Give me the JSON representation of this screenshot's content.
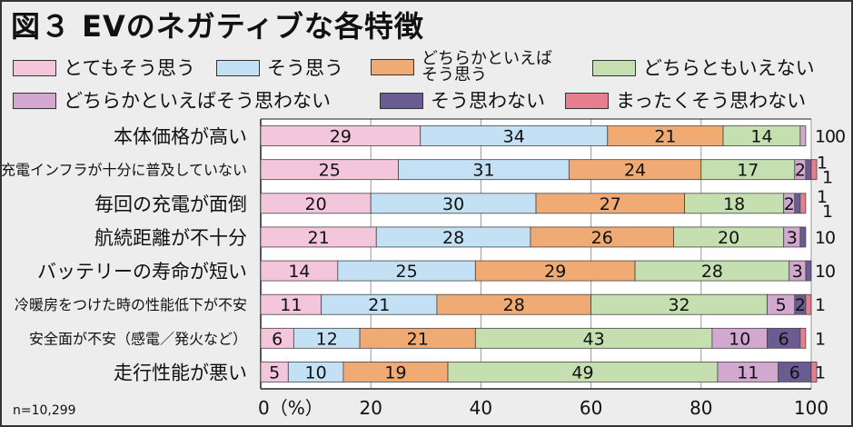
{
  "title": "図３ EVのネガティブな各特徴",
  "n_label": "n=10,299",
  "legend": [
    {
      "label": "とてもそう思う",
      "color": "#f4c6dc"
    },
    {
      "label": "そう思う",
      "color": "#c4e0f4"
    },
    {
      "label": "どちらかといえば\nそう思う",
      "color": "#f0aa74"
    },
    {
      "label": "どちらともいえない",
      "color": "#c6dfb0"
    },
    {
      "label": "どちらかといえばそう思わない",
      "color": "#d3a8d0"
    },
    {
      "label": "そう思わない",
      "color": "#6b5b93"
    },
    {
      "label": "まったくそう思わない",
      "color": "#e67e8f"
    }
  ],
  "chart_data": {
    "type": "bar",
    "orientation": "horizontal",
    "stacked": true,
    "xlabel": "",
    "ylabel": "",
    "xlim": [
      0,
      100
    ],
    "x_ticks": [
      "0（%）",
      "20",
      "40",
      "60",
      "80",
      "100"
    ],
    "grid": true,
    "categories": [
      "本体価格が高い",
      "充電インフラが十分に普及していない",
      "毎回の充電が面倒",
      "航続距離が不十分",
      "バッテリーの寿命が短い",
      "冷暖房をつけた時の性能低下が不安",
      "安全面が不安（感電／発火など）",
      "走行性能が悪い"
    ],
    "series": [
      {
        "name": "とてもそう思う",
        "color": "#f4c6dc",
        "values": [
          29,
          25,
          20,
          21,
          14,
          11,
          6,
          5
        ]
      },
      {
        "name": "そう思う",
        "color": "#c4e0f4",
        "values": [
          34,
          31,
          30,
          28,
          25,
          21,
          12,
          10
        ]
      },
      {
        "name": "どちらかといえばそう思う",
        "color": "#f0aa74",
        "values": [
          21,
          24,
          27,
          26,
          29,
          28,
          21,
          19
        ]
      },
      {
        "name": "どちらともいえない",
        "color": "#c6dfb0",
        "values": [
          14,
          17,
          18,
          20,
          28,
          32,
          43,
          49
        ]
      },
      {
        "name": "どちらかといえばそう思わない",
        "color": "#d3a8d0",
        "values": [
          1,
          2,
          2,
          3,
          3,
          5,
          10,
          11
        ]
      },
      {
        "name": "そう思わない",
        "color": "#6b5b93",
        "values": [
          0,
          1,
          1,
          1,
          1,
          2,
          6,
          6
        ]
      },
      {
        "name": "まったくそう思わない",
        "color": "#e67e8f",
        "values": [
          0,
          1,
          1,
          0,
          0,
          1,
          1,
          1
        ]
      }
    ],
    "data_labels": [
      [
        [
          "0",
          "29"
        ],
        [
          "1",
          "34"
        ],
        [
          "2",
          "21"
        ],
        [
          "3",
          "14"
        ],
        [
          "r",
          "1"
        ],
        [
          "r",
          "0"
        ],
        [
          "r",
          "0"
        ]
      ],
      [
        [
          "0",
          "25"
        ],
        [
          "1",
          "31"
        ],
        [
          "2",
          "24"
        ],
        [
          "3",
          "17"
        ],
        [
          "4",
          "2"
        ],
        [
          "rt",
          "1"
        ],
        [
          "rb",
          "1"
        ]
      ],
      [
        [
          "0",
          "20"
        ],
        [
          "1",
          "30"
        ],
        [
          "2",
          "27"
        ],
        [
          "3",
          "18"
        ],
        [
          "4",
          "2"
        ],
        [
          "rt",
          "1"
        ],
        [
          "rb",
          "1"
        ]
      ],
      [
        [
          "0",
          "21"
        ],
        [
          "1",
          "28"
        ],
        [
          "2",
          "26"
        ],
        [
          "3",
          "20"
        ],
        [
          "4",
          "3"
        ],
        [
          "r",
          "1"
        ],
        [
          "r",
          "0"
        ]
      ],
      [
        [
          "0",
          "14"
        ],
        [
          "1",
          "25"
        ],
        [
          "2",
          "29"
        ],
        [
          "3",
          "28"
        ],
        [
          "4",
          "3"
        ],
        [
          "r",
          "1"
        ],
        [
          "r",
          "0"
        ]
      ],
      [
        [
          "0",
          "11"
        ],
        [
          "1",
          "21"
        ],
        [
          "2",
          "28"
        ],
        [
          "3",
          "32"
        ],
        [
          "4",
          "5"
        ],
        [
          "5",
          "2"
        ],
        [
          "r",
          "1"
        ]
      ],
      [
        [
          "0",
          "6"
        ],
        [
          "1",
          "12"
        ],
        [
          "2",
          "21"
        ],
        [
          "3",
          "43"
        ],
        [
          "4",
          "10"
        ],
        [
          "5",
          "6"
        ],
        [
          "r",
          "1"
        ]
      ],
      [
        [
          "0",
          "5"
        ],
        [
          "1",
          "10"
        ],
        [
          "2",
          "19"
        ],
        [
          "3",
          "49"
        ],
        [
          "4",
          "11"
        ],
        [
          "5",
          "6"
        ],
        [
          "r",
          "1"
        ]
      ]
    ]
  }
}
